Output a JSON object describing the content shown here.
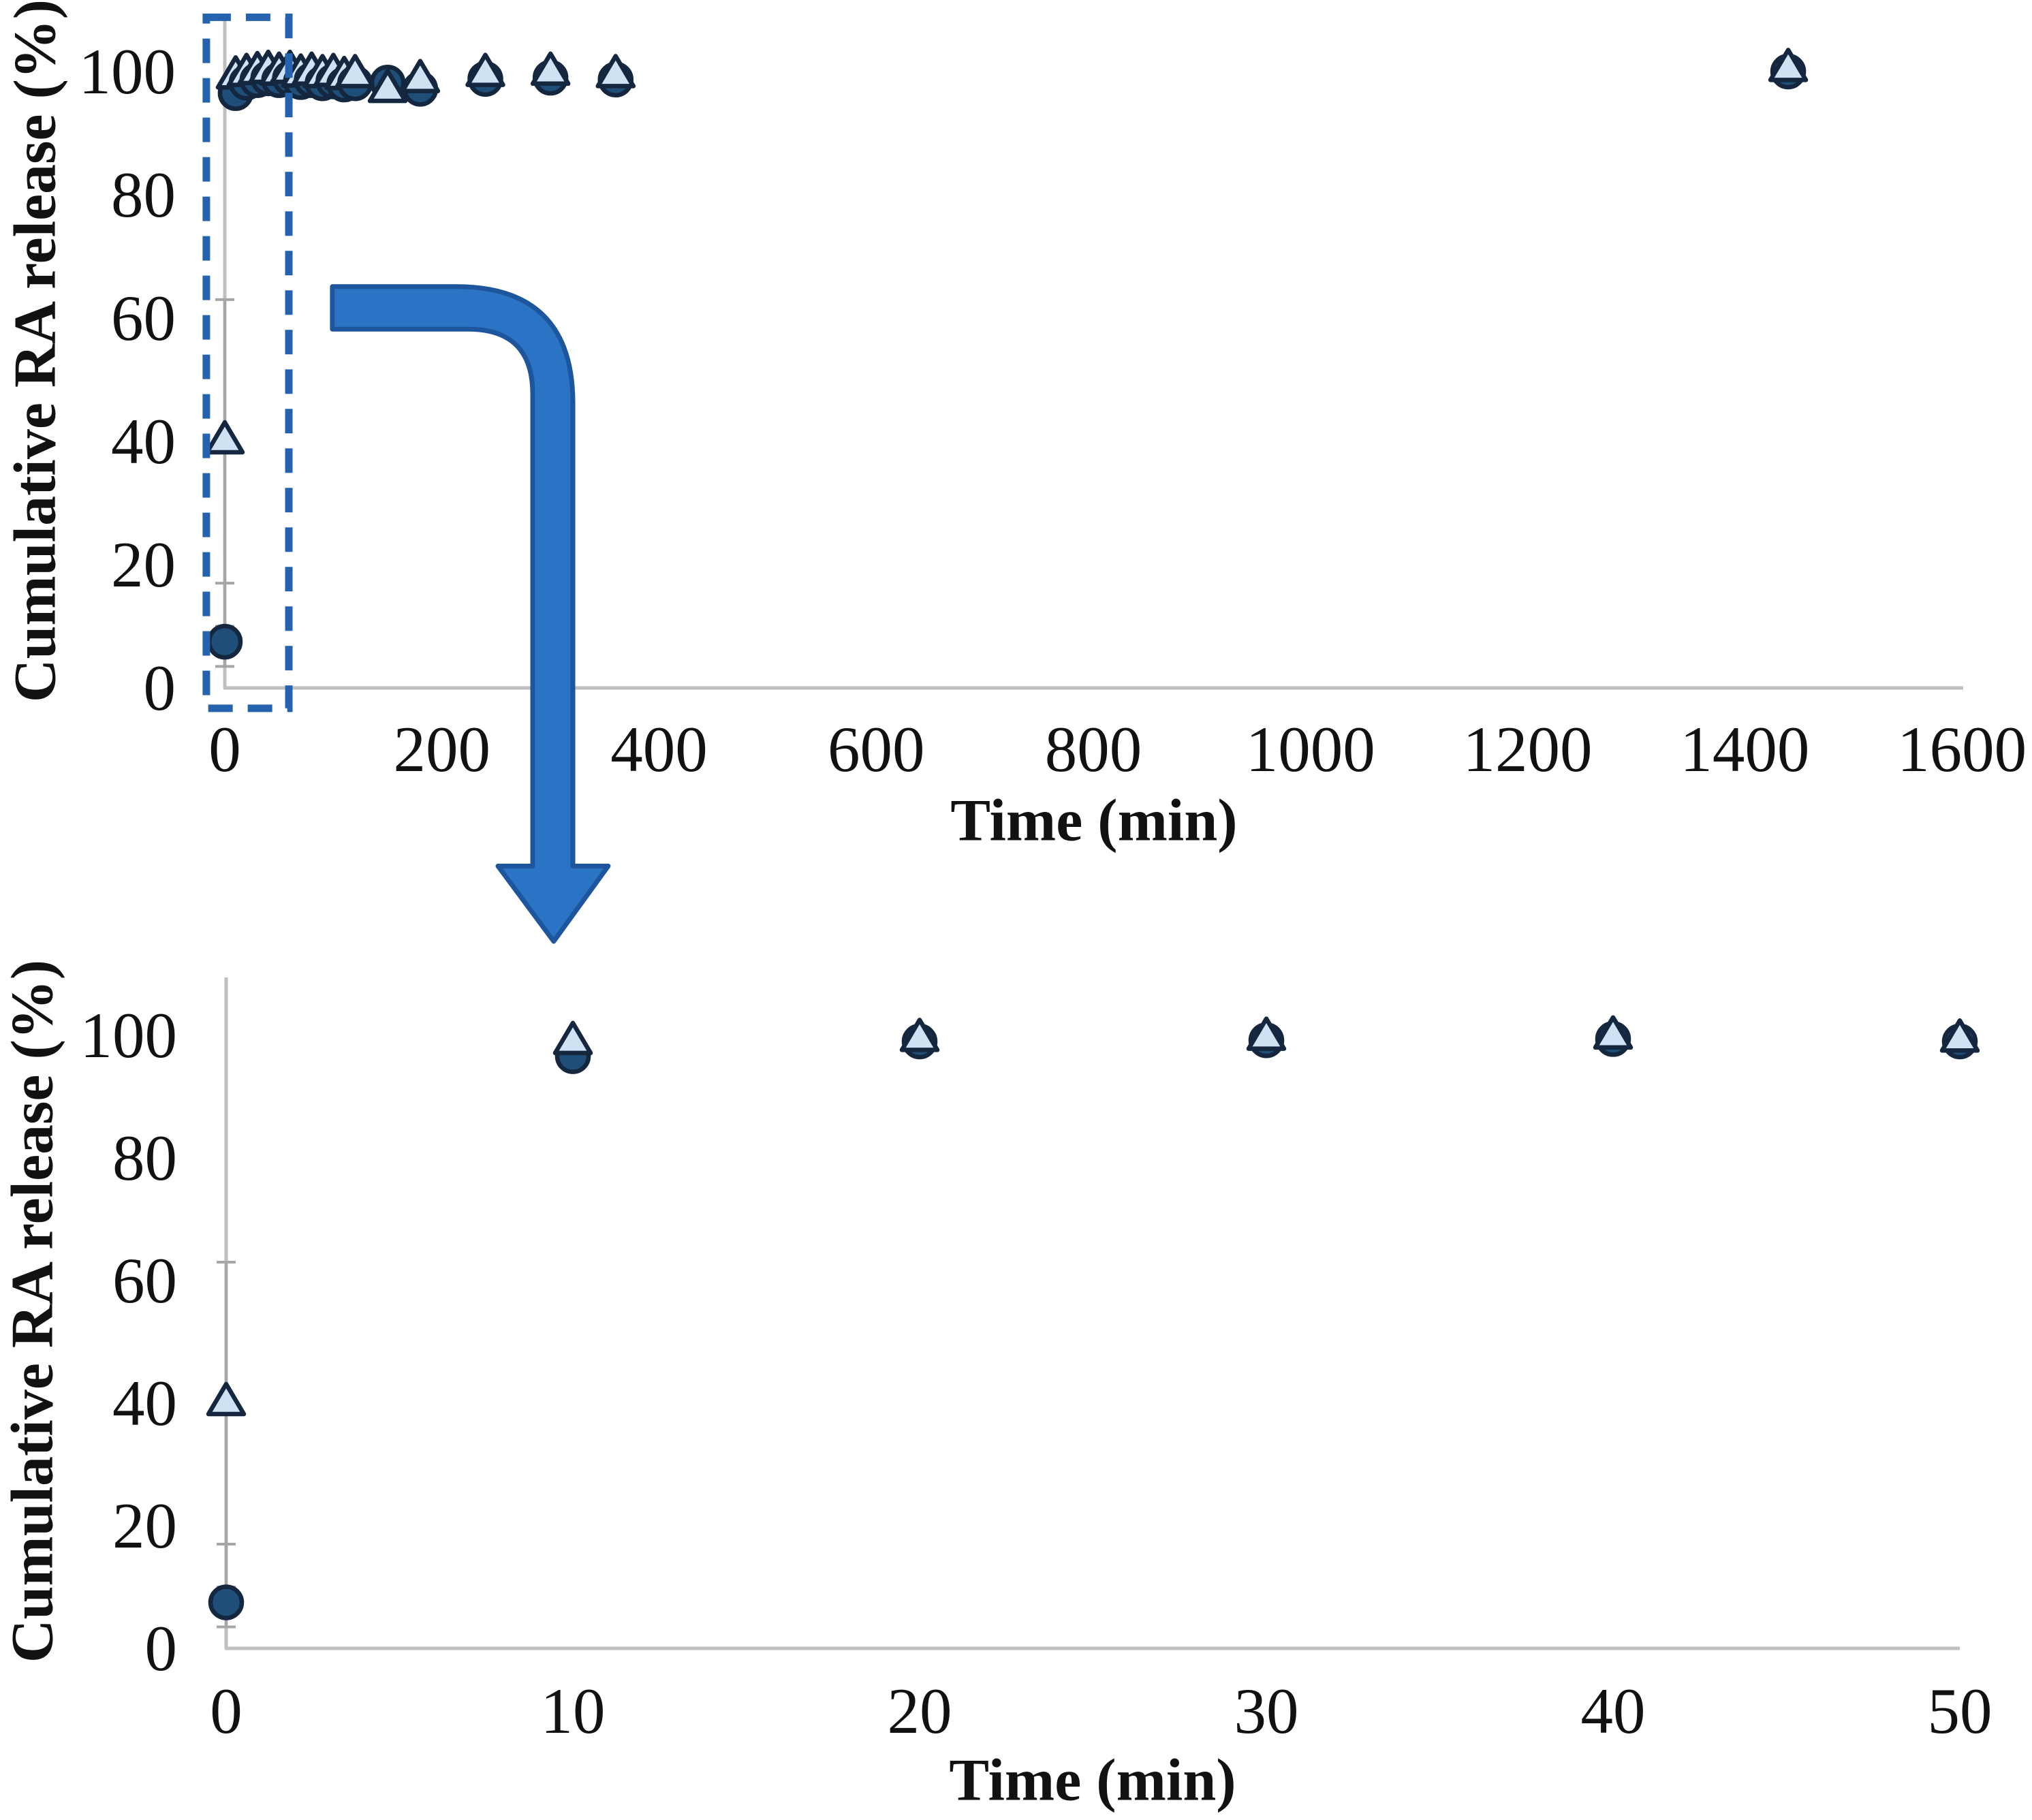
{
  "figure": {
    "background": "#ffffff",
    "kind": "two-panel cumulative release scatter figure with zoom-in annotation"
  },
  "colors": {
    "axis_line": "#BFBFBF",
    "error_bar": "#A6A6A6",
    "text": "#111111",
    "circle_fill": "#1F4E79",
    "triangle_fill": "#CFE2F3",
    "marker_stroke": "#14273F",
    "arrow_fill": "#2B73C4",
    "arrow_border": "#1E569E",
    "zoom_box": "#2663AE"
  },
  "chart_data": [
    {
      "id": "full-timescale",
      "type": "scatter",
      "title": "",
      "xlabel": "Time (min)",
      "ylabel": "Cumulative RA release (%)",
      "xlim": [
        0,
        1600
      ],
      "ylim": [
        0,
        100
      ],
      "x_ticks": [
        0,
        200,
        400,
        600,
        800,
        1000,
        1200,
        1400,
        1600
      ],
      "y_ticks": [
        0,
        20,
        40,
        60,
        80,
        100
      ],
      "grid": false,
      "legend": "none",
      "series": [
        {
          "name": "dark_circles",
          "marker": "circle",
          "marker_fill": "#1F4E79",
          "marker_stroke": "#14273F",
          "points": [
            [
              0,
              7.5
            ],
            [
              10,
              96.5
            ],
            [
              20,
              98.2
            ],
            [
              30,
              98.6
            ],
            [
              40,
              98.9
            ],
            [
              50,
              98.6
            ],
            [
              60,
              98.9
            ],
            [
              70,
              98.3
            ],
            [
              80,
              98.6
            ],
            [
              90,
              98.1
            ],
            [
              100,
              98.4
            ],
            [
              110,
              97.9
            ],
            [
              120,
              98.1
            ],
            [
              150,
              98.2
            ],
            [
              180,
              97.2
            ],
            [
              240,
              98.8
            ],
            [
              300,
              99.0
            ],
            [
              360,
              98.7
            ],
            [
              1440,
              100.0
            ]
          ]
        },
        {
          "name": "light_triangles",
          "marker": "triangle",
          "marker_fill": "#CFE2F3",
          "marker_stroke": "#14273F",
          "points": [
            [
              0,
              40
            ],
            [
              10,
              99.2
            ],
            [
              20,
              99.6
            ],
            [
              30,
              99.9
            ],
            [
              40,
              100.1
            ],
            [
              50,
              99.8
            ],
            [
              60,
              100.1
            ],
            [
              70,
              99.5
            ],
            [
              80,
              99.8
            ],
            [
              90,
              99.4
            ],
            [
              100,
              99.6
            ],
            [
              110,
              99.1
            ],
            [
              120,
              99.4
            ],
            [
              150,
              97.0
            ],
            [
              180,
              98.6
            ],
            [
              240,
              99.6
            ],
            [
              300,
              99.8
            ],
            [
              360,
              99.4
            ],
            [
              1440,
              100.4
            ]
          ]
        }
      ],
      "error_bars": [
        {
          "x": 0,
          "low": 3.5,
          "high": 63,
          "caps": [
            63,
            17,
            10,
            3.5
          ]
        }
      ],
      "annotations": {
        "zoom_box": {
          "x": [
            -17,
            59
          ],
          "y": [
            -3.3,
            108.8
          ],
          "style": "dashed",
          "color": "#2663AE"
        },
        "elbow_arrow": {
          "color": "#2B73C4",
          "border": "#1E569E",
          "path": [
            [
              "M",
              99.1,
              65.1
            ],
            [
              "L",
              213.3,
              65.1
            ],
            [
              "Q",
              320.6,
              65.1,
              320.6,
              46.2
            ],
            [
              "L",
              320.6,
              -28.9
            ],
            [
              "L",
              353.2,
              -28.9
            ],
            [
              "L",
              303.0,
              -41.1
            ],
            [
              "L",
              251.6,
              -28.9
            ],
            [
              "L",
              283.6,
              -28.9
            ],
            [
              "L",
              283.6,
              47.7
            ],
            [
              "Q",
              283.6,
              58.2,
              224.0,
              58.2
            ],
            [
              "L",
              99.1,
              58.2
            ],
            [
              "Z"
            ]
          ]
        }
      }
    },
    {
      "id": "zoomed-0-50-min",
      "type": "scatter",
      "title": "",
      "xlabel": "Time (min)",
      "ylabel": "Cumulative RA release (%)",
      "xlim": [
        0,
        50
      ],
      "ylim": [
        0,
        100
      ],
      "x_ticks": [
        0,
        10,
        20,
        30,
        40,
        50
      ],
      "y_ticks": [
        0,
        20,
        40,
        60,
        80,
        100
      ],
      "grid": false,
      "legend": "none",
      "series": [
        {
          "name": "dark_circles",
          "marker": "circle",
          "marker_fill": "#1F4E79",
          "marker_stroke": "#14273F",
          "points": [
            [
              0,
              7.5
            ],
            [
              10,
              96.6
            ],
            [
              20,
              99.0
            ],
            [
              30,
              99.2
            ],
            [
              40,
              99.4
            ],
            [
              50,
              99.0
            ]
          ]
        },
        {
          "name": "light_triangles",
          "marker": "triangle",
          "marker_fill": "#CFE2F3",
          "marker_stroke": "#14273F",
          "points": [
            [
              0,
              40
            ],
            [
              10,
              98.9
            ],
            [
              20,
              99.4
            ],
            [
              30,
              99.6
            ],
            [
              40,
              99.8
            ],
            [
              50,
              99.3
            ]
          ]
        }
      ],
      "error_bars": [
        {
          "x": 0,
          "low": 3.5,
          "high": 63,
          "caps": [
            63,
            17,
            10,
            3.5
          ]
        }
      ],
      "annotations": {}
    }
  ]
}
